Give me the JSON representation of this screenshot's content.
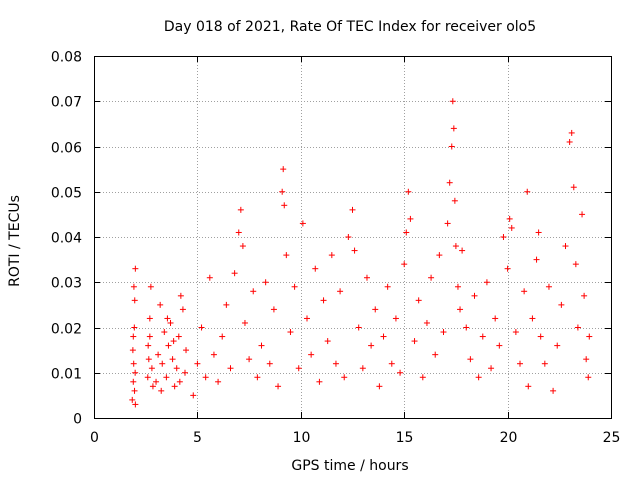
{
  "chart_data": {
    "type": "scatter",
    "title": "Day 018 of 2021, Rate Of TEC Index for receiver olo5",
    "xlabel": "GPS time / hours",
    "ylabel": "ROTI / TECUs",
    "xlim": [
      0,
      25
    ],
    "ylim": [
      0,
      0.08
    ],
    "x_ticks": [
      "0",
      "5",
      "10",
      "15",
      "20",
      "25"
    ],
    "y_ticks": [
      "0",
      "0.01",
      "0.02",
      "0.03",
      "0.04",
      "0.05",
      "0.06",
      "0.07",
      "0.08"
    ],
    "grid": true,
    "marker": "+",
    "color": "#ff0000",
    "series": [
      {
        "points": [
          [
            1.85,
            0.004
          ],
          [
            1.9,
            0.008
          ],
          [
            1.92,
            0.012
          ],
          [
            1.95,
            0.02
          ],
          [
            1.97,
            0.026
          ],
          [
            2.0,
            0.033
          ],
          [
            1.88,
            0.015
          ],
          [
            1.93,
            0.029
          ],
          [
            1.96,
            0.006
          ],
          [
            1.99,
            0.01
          ],
          [
            2.0,
            0.003
          ],
          [
            1.9,
            0.018
          ],
          [
            2.6,
            0.009
          ],
          [
            2.65,
            0.013
          ],
          [
            2.7,
            0.018
          ],
          [
            2.75,
            0.029
          ],
          [
            2.8,
            0.011
          ],
          [
            2.85,
            0.007
          ],
          [
            2.7,
            0.022
          ],
          [
            2.62,
            0.016
          ],
          [
            3.0,
            0.008
          ],
          [
            3.1,
            0.014
          ],
          [
            3.2,
            0.025
          ],
          [
            3.3,
            0.012
          ],
          [
            3.4,
            0.019
          ],
          [
            3.5,
            0.009
          ],
          [
            3.6,
            0.016
          ],
          [
            3.7,
            0.021
          ],
          [
            3.8,
            0.013
          ],
          [
            3.9,
            0.007
          ],
          [
            4.0,
            0.011
          ],
          [
            4.1,
            0.018
          ],
          [
            4.2,
            0.027
          ],
          [
            4.3,
            0.024
          ],
          [
            4.4,
            0.01
          ],
          [
            4.45,
            0.015
          ],
          [
            3.25,
            0.006
          ],
          [
            3.55,
            0.022
          ],
          [
            3.85,
            0.017
          ],
          [
            4.15,
            0.008
          ],
          [
            4.8,
            0.005
          ],
          [
            5.0,
            0.012
          ],
          [
            5.2,
            0.02
          ],
          [
            5.4,
            0.009
          ],
          [
            5.6,
            0.031
          ],
          [
            5.8,
            0.014
          ],
          [
            6.0,
            0.008
          ],
          [
            6.2,
            0.018
          ],
          [
            6.4,
            0.025
          ],
          [
            6.6,
            0.011
          ],
          [
            6.8,
            0.032
          ],
          [
            7.0,
            0.041
          ],
          [
            7.1,
            0.046
          ],
          [
            7.2,
            0.038
          ],
          [
            7.3,
            0.021
          ],
          [
            7.5,
            0.013
          ],
          [
            7.7,
            0.028
          ],
          [
            7.9,
            0.009
          ],
          [
            8.1,
            0.016
          ],
          [
            8.3,
            0.03
          ],
          [
            8.5,
            0.012
          ],
          [
            8.7,
            0.024
          ],
          [
            8.9,
            0.007
          ],
          [
            9.1,
            0.05
          ],
          [
            9.15,
            0.055
          ],
          [
            9.2,
            0.047
          ],
          [
            9.3,
            0.036
          ],
          [
            9.5,
            0.019
          ],
          [
            9.7,
            0.029
          ],
          [
            9.9,
            0.011
          ],
          [
            10.1,
            0.043
          ],
          [
            10.3,
            0.022
          ],
          [
            10.5,
            0.014
          ],
          [
            10.7,
            0.033
          ],
          [
            10.9,
            0.008
          ],
          [
            11.1,
            0.026
          ],
          [
            11.3,
            0.017
          ],
          [
            11.5,
            0.036
          ],
          [
            11.7,
            0.012
          ],
          [
            11.9,
            0.028
          ],
          [
            12.1,
            0.009
          ],
          [
            12.3,
            0.04
          ],
          [
            12.5,
            0.046
          ],
          [
            12.6,
            0.037
          ],
          [
            12.8,
            0.02
          ],
          [
            13.0,
            0.011
          ],
          [
            13.2,
            0.031
          ],
          [
            13.4,
            0.016
          ],
          [
            13.6,
            0.024
          ],
          [
            13.8,
            0.007
          ],
          [
            14.0,
            0.018
          ],
          [
            14.2,
            0.029
          ],
          [
            14.4,
            0.012
          ],
          [
            14.6,
            0.022
          ],
          [
            14.8,
            0.01
          ],
          [
            15.0,
            0.034
          ],
          [
            15.1,
            0.041
          ],
          [
            15.2,
            0.05
          ],
          [
            15.3,
            0.044
          ],
          [
            15.5,
            0.017
          ],
          [
            15.7,
            0.026
          ],
          [
            15.9,
            0.009
          ],
          [
            16.1,
            0.021
          ],
          [
            16.3,
            0.031
          ],
          [
            16.5,
            0.014
          ],
          [
            16.7,
            0.036
          ],
          [
            16.9,
            0.019
          ],
          [
            17.1,
            0.043
          ],
          [
            17.2,
            0.052
          ],
          [
            17.3,
            0.06
          ],
          [
            17.35,
            0.07
          ],
          [
            17.4,
            0.064
          ],
          [
            17.45,
            0.048
          ],
          [
            17.5,
            0.038
          ],
          [
            17.6,
            0.029
          ],
          [
            17.7,
            0.024
          ],
          [
            17.8,
            0.037
          ],
          [
            18.0,
            0.02
          ],
          [
            18.2,
            0.013
          ],
          [
            18.4,
            0.027
          ],
          [
            18.6,
            0.009
          ],
          [
            18.8,
            0.018
          ],
          [
            19.0,
            0.03
          ],
          [
            19.2,
            0.011
          ],
          [
            19.4,
            0.022
          ],
          [
            19.6,
            0.016
          ],
          [
            19.8,
            0.04
          ],
          [
            20.0,
            0.033
          ],
          [
            20.1,
            0.044
          ],
          [
            20.2,
            0.042
          ],
          [
            20.4,
            0.019
          ],
          [
            20.6,
            0.012
          ],
          [
            20.8,
            0.028
          ],
          [
            20.95,
            0.05
          ],
          [
            21.0,
            0.007
          ],
          [
            21.2,
            0.022
          ],
          [
            21.4,
            0.035
          ],
          [
            21.5,
            0.041
          ],
          [
            21.6,
            0.018
          ],
          [
            21.8,
            0.012
          ],
          [
            22.0,
            0.029
          ],
          [
            22.2,
            0.006
          ],
          [
            22.4,
            0.016
          ],
          [
            22.6,
            0.025
          ],
          [
            22.8,
            0.038
          ],
          [
            23.0,
            0.061
          ],
          [
            23.1,
            0.063
          ],
          [
            23.2,
            0.051
          ],
          [
            23.3,
            0.034
          ],
          [
            23.4,
            0.02
          ],
          [
            23.6,
            0.045
          ],
          [
            23.7,
            0.027
          ],
          [
            23.8,
            0.013
          ],
          [
            23.9,
            0.009
          ],
          [
            23.95,
            0.018
          ]
        ]
      }
    ]
  }
}
